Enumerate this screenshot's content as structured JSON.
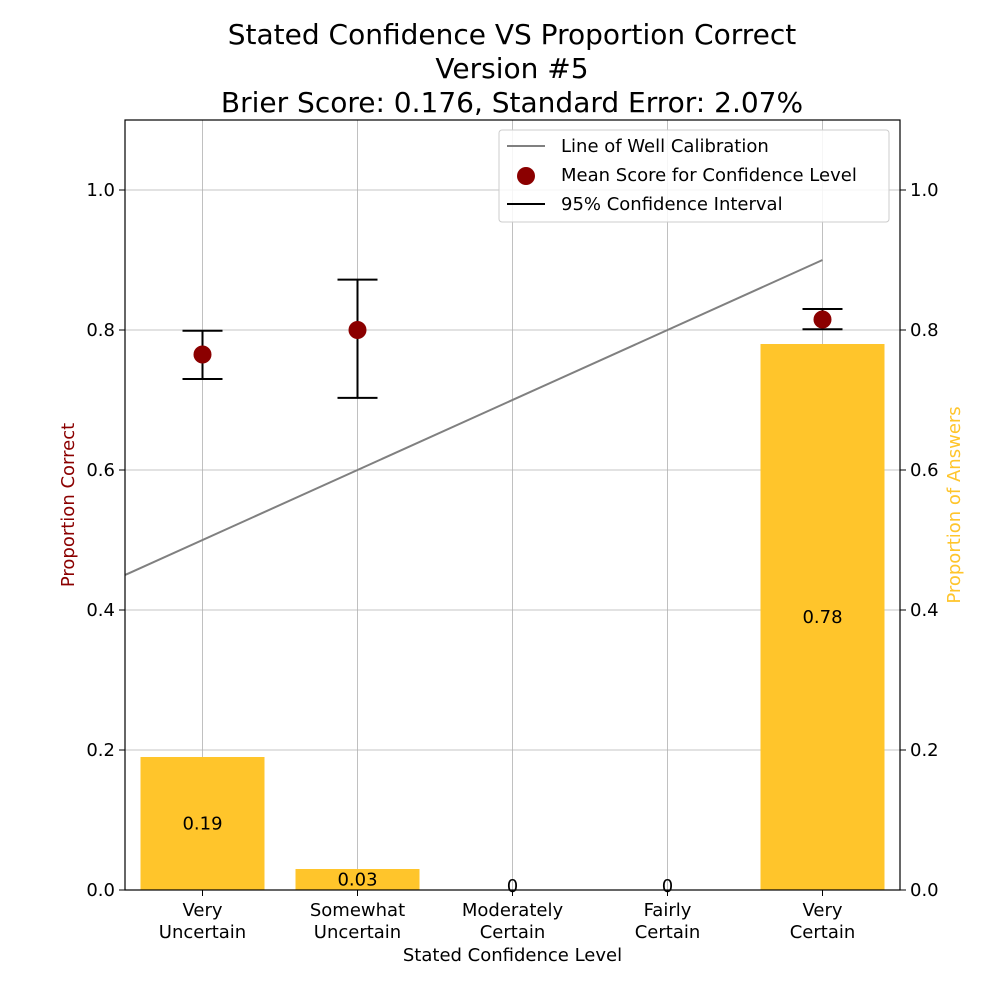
{
  "chart_data": {
    "type": "bar",
    "title_lines": [
      "Stated Confidence VS Proportion Correct",
      "Version #5",
      "Brier Score: 0.176, Standard Error: 2.07%"
    ],
    "xlabel": "Stated Confidence Level",
    "ylabel_left": "Proportion Correct",
    "ylabel_right": "Proportion of Answers",
    "ylim": [
      0,
      1.1
    ],
    "yticks": [
      "0.0",
      "0.2",
      "0.4",
      "0.6",
      "0.8",
      "1.0"
    ],
    "categories": [
      [
        "Very",
        "Uncertain"
      ],
      [
        "Somewhat",
        "Uncertain"
      ],
      [
        "Moderately",
        "Certain"
      ],
      [
        "Fairly",
        "Certain"
      ],
      [
        "Very",
        "Certain"
      ]
    ],
    "proportion_of_answers": [
      0.19,
      0.03,
      0,
      0,
      0.78
    ],
    "bar_labels": [
      "0.19",
      "0.03",
      "0",
      "0",
      "0.78"
    ],
    "mean_score": [
      0.765,
      0.8,
      null,
      null,
      0.815
    ],
    "ci_low": [
      0.73,
      0.703,
      null,
      null,
      0.801
    ],
    "ci_high": [
      0.799,
      0.872,
      null,
      null,
      0.83
    ],
    "calibration_line": {
      "x": [
        -0.5,
        4
      ],
      "y": [
        0.45,
        0.9
      ]
    },
    "grid": true,
    "legend_position": "top-right",
    "legend": [
      "Line of Well Calibration",
      "Mean Score for Confidence Level",
      "95% Confidence Interval"
    ],
    "colors": {
      "bar": "#ffc52b",
      "marker": "#8b0000",
      "line": "#808080",
      "errorbar": "#000000",
      "left_label": "#8b0000",
      "right_label": "#ffc52b"
    }
  }
}
